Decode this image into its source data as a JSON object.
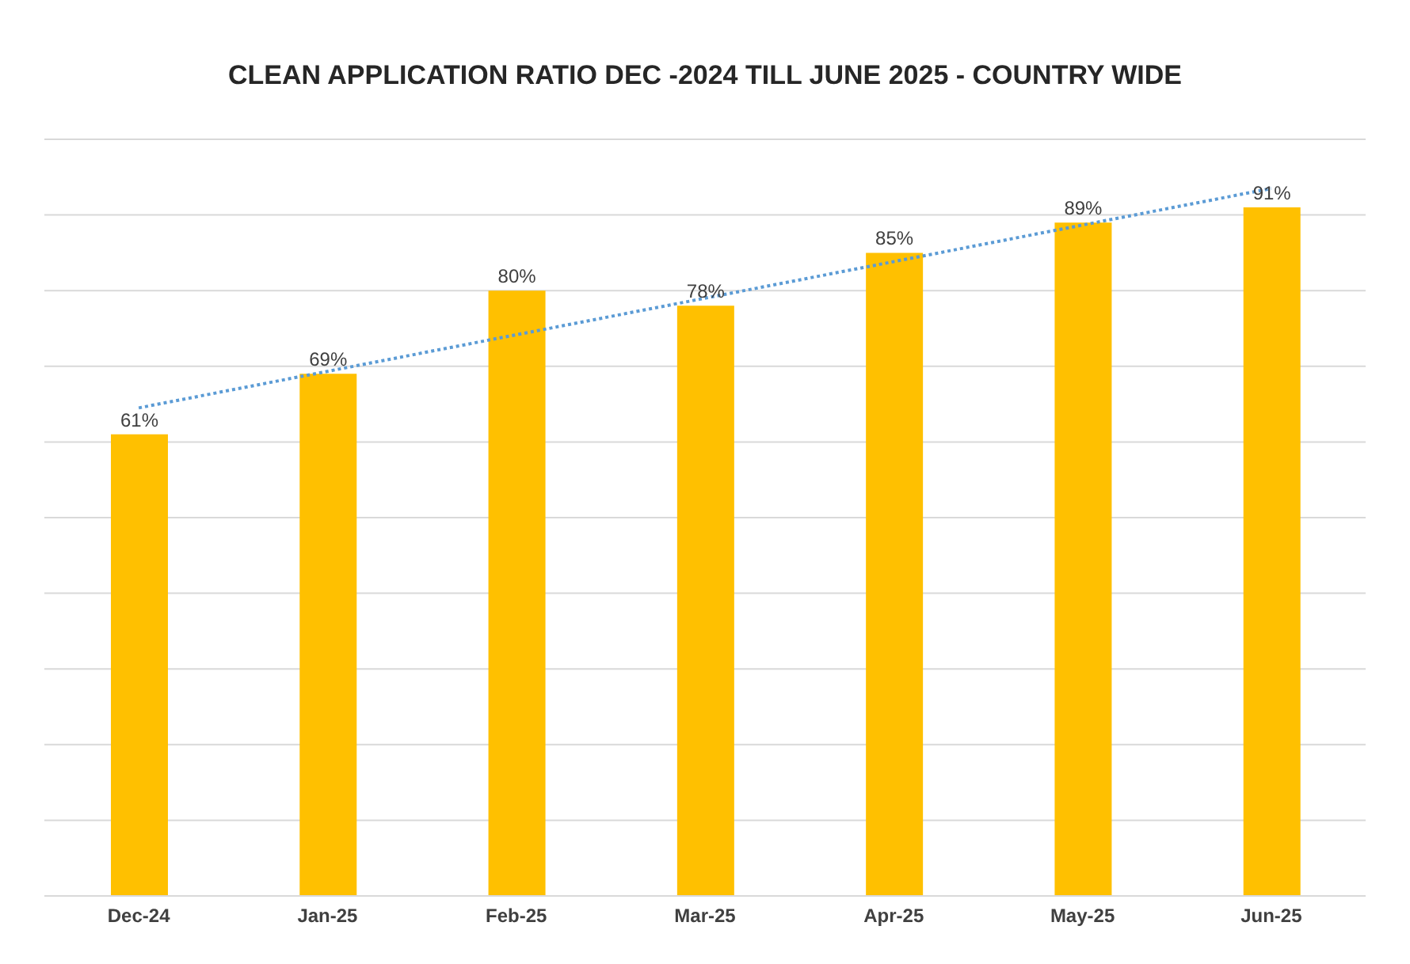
{
  "chart_data": {
    "type": "bar",
    "title": "CLEAN APPLICATION RATIO DEC -2024 TILL JUNE 2025 - COUNTRY WIDE",
    "categories": [
      "Dec-24",
      "Jan-25",
      "Feb-25",
      "Mar-25",
      "Apr-25",
      "May-25",
      "Jun-25"
    ],
    "series": [
      {
        "color": "#ffc000",
        "values": [
          61,
          69,
          80,
          78,
          85,
          89,
          91
        ],
        "value_labels": [
          "61%",
          "69%",
          "80%",
          "78%",
          "85%",
          "89%",
          "91%"
        ]
      },
      {
        "type": "line",
        "color": "#5b9bd5",
        "x": [
          "Dec-24",
          "Jun-25"
        ],
        "values": [
          64.5,
          93.5
        ],
        "line_style": "dotted"
      }
    ],
    "ylim": [
      0,
      100
    ],
    "yticks": [
      {
        "value": 0,
        "label": null
      },
      {
        "value": 10,
        "label": null
      },
      {
        "value": 20,
        "label": null
      },
      {
        "value": 30,
        "label": null
      },
      {
        "value": 40,
        "label": null
      },
      {
        "value": 50,
        "label": null
      },
      {
        "value": 60,
        "label": null
      },
      {
        "value": 70,
        "label": null
      },
      {
        "value": 80,
        "label": null
      },
      {
        "value": 90,
        "label": null
      },
      {
        "value": 100,
        "label": null
      }
    ],
    "tick_labels": "x",
    "grid": "y",
    "legend": false
  }
}
